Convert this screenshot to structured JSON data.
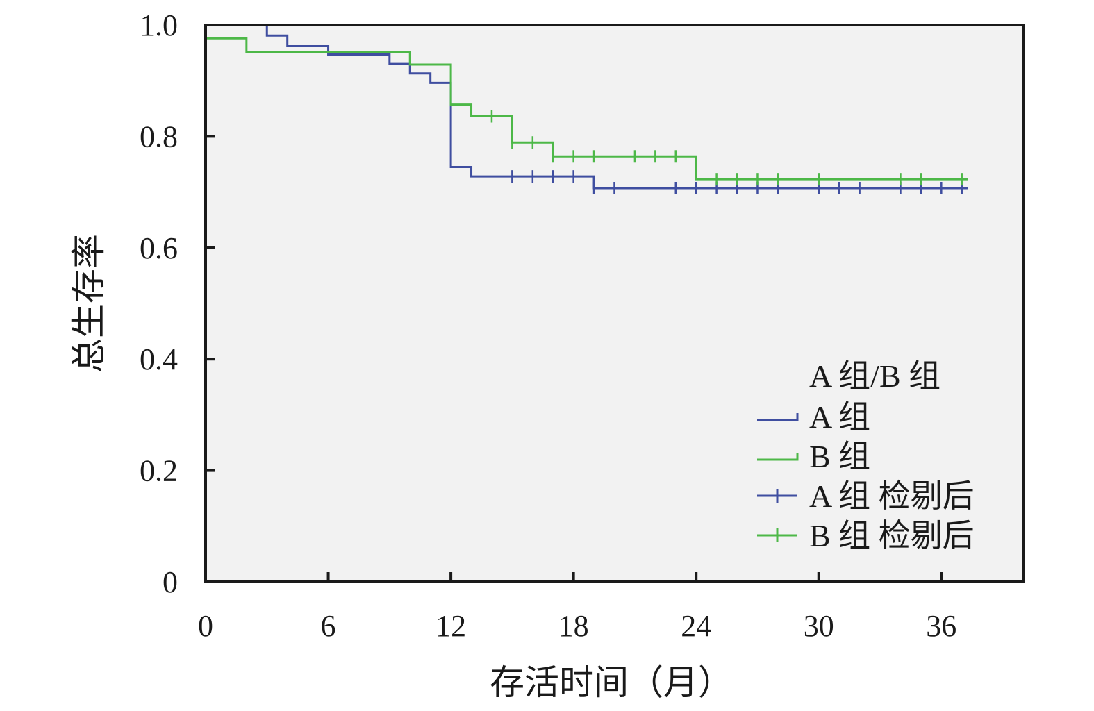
{
  "chart_data": {
    "type": "line",
    "subtype": "kaplan-meier-step",
    "xlabel": "存活时间（月）",
    "ylabel": "总生存率",
    "xlim": [
      0,
      40
    ],
    "ylim": [
      0,
      1.0
    ],
    "x_ticks": [
      0,
      6,
      12,
      18,
      24,
      30,
      36
    ],
    "y_ticks": [
      0,
      0.2,
      0.4,
      0.6,
      0.8,
      1.0
    ],
    "y_tick_labels": [
      "0",
      "0.2",
      "0.4",
      "0.6",
      "0.8",
      "1.0"
    ],
    "grid": false,
    "background": "#f2f2f2",
    "legend": {
      "title": "A 组/B 组",
      "position": "bottom-right",
      "entries": [
        {
          "label": "A 组",
          "kind": "step",
          "series": "A"
        },
        {
          "label": "B 组",
          "kind": "step",
          "series": "B"
        },
        {
          "label": "A 组 检剔后",
          "kind": "censor",
          "series": "A"
        },
        {
          "label": "B 组 检剔后",
          "kind": "censor",
          "series": "B"
        }
      ]
    },
    "series": [
      {
        "name": "A 组",
        "color": "#3f4ea0",
        "steps": [
          [
            0,
            1.0
          ],
          [
            3,
            0.981
          ],
          [
            4,
            0.962
          ],
          [
            6,
            0.947
          ],
          [
            9,
            0.93
          ],
          [
            10,
            0.913
          ],
          [
            11,
            0.896
          ],
          [
            12,
            0.745
          ],
          [
            13,
            0.728
          ],
          [
            19,
            0.707
          ],
          [
            37.3,
            0.707
          ]
        ],
        "censored": [
          [
            15,
            0.728
          ],
          [
            16,
            0.728
          ],
          [
            17,
            0.728
          ],
          [
            18,
            0.728
          ],
          [
            19,
            0.707
          ],
          [
            20,
            0.707
          ],
          [
            23,
            0.707
          ],
          [
            24,
            0.707
          ],
          [
            25,
            0.707
          ],
          [
            26,
            0.707
          ],
          [
            27,
            0.707
          ],
          [
            28,
            0.707
          ],
          [
            30,
            0.707
          ],
          [
            31,
            0.707
          ],
          [
            32,
            0.707
          ],
          [
            34,
            0.707
          ],
          [
            35,
            0.707
          ],
          [
            36,
            0.707
          ],
          [
            37,
            0.707
          ]
        ]
      },
      {
        "name": "B 组",
        "color": "#4db848",
        "steps": [
          [
            0,
            0.976
          ],
          [
            2,
            0.952
          ],
          [
            10,
            0.929
          ],
          [
            12,
            0.857
          ],
          [
            13,
            0.836
          ],
          [
            15,
            0.789
          ],
          [
            17,
            0.764
          ],
          [
            24,
            0.723
          ],
          [
            37.3,
            0.723
          ]
        ],
        "censored": [
          [
            14,
            0.836
          ],
          [
            15,
            0.789
          ],
          [
            16,
            0.789
          ],
          [
            17,
            0.764
          ],
          [
            18,
            0.764
          ],
          [
            19,
            0.764
          ],
          [
            21,
            0.764
          ],
          [
            22,
            0.764
          ],
          [
            23,
            0.764
          ],
          [
            25,
            0.723
          ],
          [
            26,
            0.723
          ],
          [
            27,
            0.723
          ],
          [
            28,
            0.723
          ],
          [
            30,
            0.723
          ],
          [
            34,
            0.723
          ],
          [
            35,
            0.723
          ],
          [
            37,
            0.723
          ]
        ]
      }
    ]
  }
}
